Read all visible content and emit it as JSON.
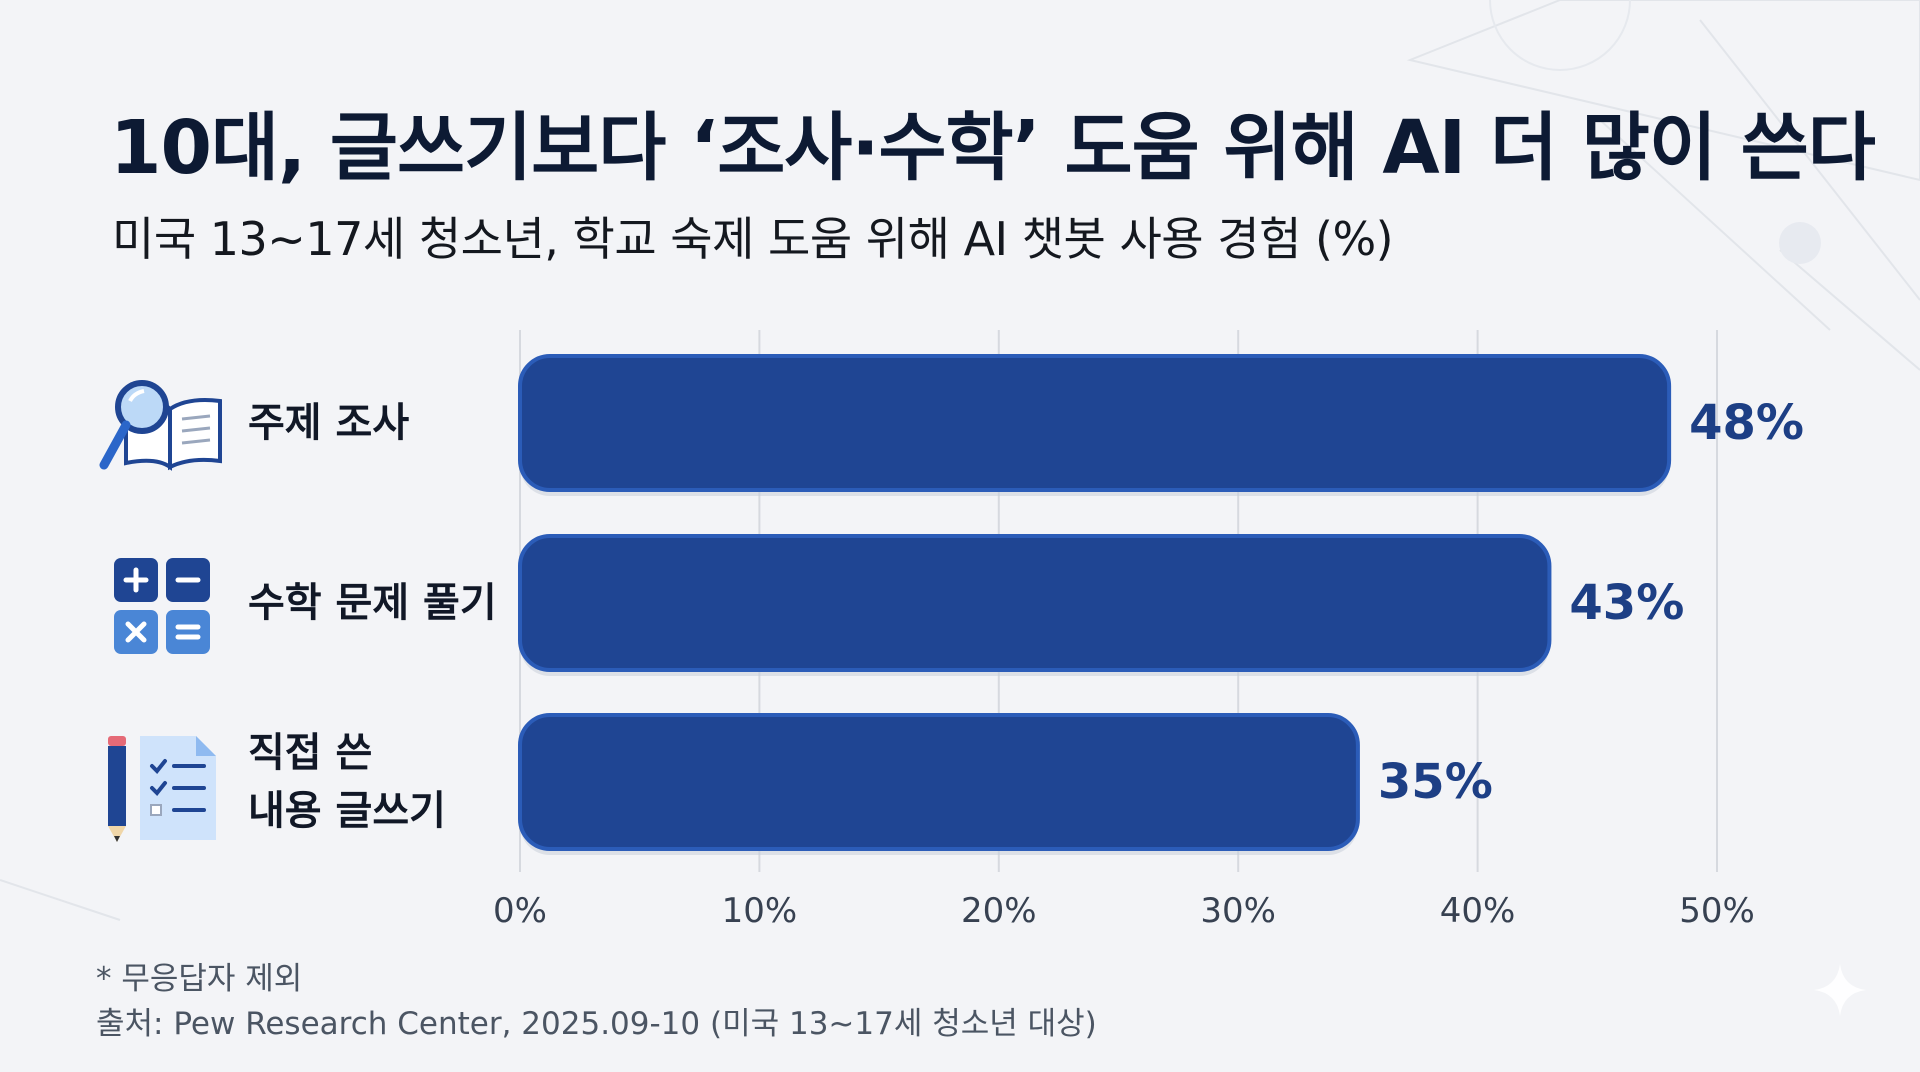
{
  "title": "10대, 글쓰기보다 ‘조사·수학’ 도움 위해 AI 더 많이 쓴다",
  "subtitle": "미국 13~17세 청소년, 학교 숙제 도움 위해 AI 챗봇 사용 경험 (%)",
  "footnote": "* 무응답자 제외",
  "source": "출처: Pew Research Center, 2025.09-10 (미국 13~17세 청소년 대상)",
  "colors": {
    "bar": "#1f4593",
    "bar_edge": "#2b5cb8",
    "value_label": "#1d3f85",
    "grid": "#d6d9df",
    "tick": "#374151"
  },
  "chart_data": {
    "type": "bar",
    "orientation": "horizontal",
    "categories": [
      "주제 조사",
      "수학 문제 풀기",
      "직접 쓴\n내용 글쓰기"
    ],
    "values": [
      48,
      43,
      35
    ],
    "value_labels": [
      "48%",
      "43%",
      "35%"
    ],
    "category_icons": [
      "magnifier-book-icon",
      "calculator-icon",
      "pencil-checklist-icon"
    ],
    "xlim": [
      0,
      50
    ],
    "xticks": [
      0,
      10,
      20,
      30,
      40,
      50
    ],
    "xtick_labels": [
      "0%",
      "10%",
      "20%",
      "30%",
      "40%",
      "50%"
    ],
    "grid": true,
    "xlabel": "",
    "ylabel": ""
  }
}
